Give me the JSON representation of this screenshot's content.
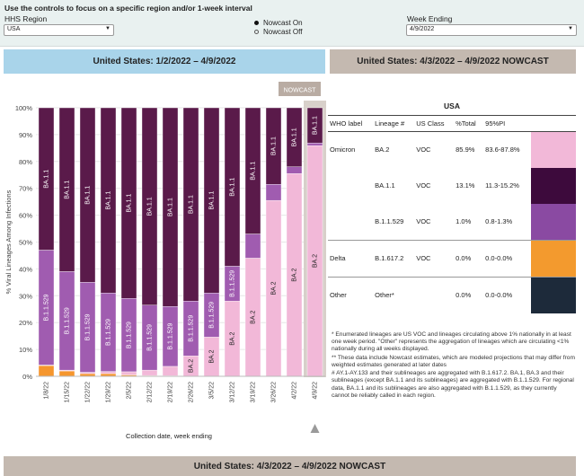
{
  "controls": {
    "intro": "Use the controls to focus on a specific region and/or 1-week interval",
    "region_label": "HHS Region",
    "region_value": "USA",
    "nowcast_on": "Nowcast On",
    "nowcast_off": "Nowcast Off",
    "nowcast_selected": "on",
    "week_label": "Week Ending",
    "week_value": "4/9/2022"
  },
  "banners": {
    "left": "United States: 1/2/2022 – 4/9/2022",
    "right": "United States: 4/3/2022 – 4/9/2022 NOWCAST",
    "bottom": "United States: 4/3/2022 – 4/9/2022 NOWCAST"
  },
  "colors": {
    "BA.2": "#f2b8d8",
    "BA.1.1": "#5a1a4a",
    "B.1.1.529": "#a05cb0",
    "Delta": "#f5962e",
    "Other": "#1d2a3a"
  },
  "chart_data": {
    "type": "bar",
    "stacked": true,
    "ylabel": "% Viral Lineages Among Infections",
    "xlabel": "Collection date, week ending",
    "ylim": [
      0,
      100
    ],
    "yticks": [
      "0%",
      "10%",
      "20%",
      "30%",
      "40%",
      "50%",
      "60%",
      "70%",
      "80%",
      "90%",
      "100%"
    ],
    "nowcast_label": "NOWCAST",
    "nowcast_start_index": 13,
    "categories": [
      "1/8/22",
      "1/15/22",
      "1/22/22",
      "1/29/22",
      "2/5/22",
      "2/12/22",
      "2/19/22",
      "2/26/22",
      "3/5/22",
      "3/12/22",
      "3/19/22",
      "3/26/22",
      "4/2/22",
      "4/9/22"
    ],
    "series": [
      {
        "name": "Delta",
        "values": [
          4,
          2,
          1,
          1,
          0.5,
          0.3,
          0.2,
          0.1,
          0.1,
          0,
          0,
          0,
          0,
          0
        ]
      },
      {
        "name": "BA.2",
        "values": [
          0.2,
          0.3,
          0.5,
          0.8,
          1.2,
          2,
          3.5,
          7.5,
          14.5,
          28,
          44,
          65.5,
          75.5,
          85.9
        ]
      },
      {
        "name": "B.1.1.529",
        "values": [
          42.8,
          36.7,
          33.5,
          29.2,
          27.3,
          24.2,
          22.3,
          20.4,
          16.4,
          13,
          9,
          6,
          2.5,
          1
        ]
      },
      {
        "name": "BA.1.1",
        "values": [
          53,
          61,
          65,
          69,
          71,
          73.5,
          74,
          72,
          69,
          59,
          47,
          28.5,
          22,
          13.1
        ]
      }
    ],
    "bar_labels": [
      [
        "",
        "",
        "B.1.1.529",
        "BA.1.1"
      ],
      [
        "",
        "",
        "B.1.1.529",
        "BA.1.1"
      ],
      [
        "",
        "",
        "B.1.1.529",
        "BA.1.1"
      ],
      [
        "",
        "",
        "B.1.1.529",
        "BA.1.1"
      ],
      [
        "",
        "",
        "B.1.1.529",
        "BA.1.1"
      ],
      [
        "",
        "",
        "B.1.1.529",
        "BA.1.1"
      ],
      [
        "",
        "",
        "B.1.1.529",
        "BA.1.1"
      ],
      [
        "",
        "BA.2",
        "B.1.1.529",
        "BA.1.1"
      ],
      [
        "",
        "BA.2",
        "B.1.1.529",
        "BA.1.1"
      ],
      [
        "",
        "BA.2",
        "B.1.1.529",
        "BA.1.1"
      ],
      [
        "",
        "BA.2",
        "",
        "BA.1.1"
      ],
      [
        "",
        "BA.2",
        "",
        "BA.1.1"
      ],
      [
        "",
        "BA.2",
        "",
        "BA.1.1"
      ],
      [
        "",
        "BA.2",
        "",
        "BA.1.1"
      ]
    ]
  },
  "table": {
    "title": "USA",
    "headers": [
      "WHO label",
      "Lineage #",
      "US Class",
      "%Total",
      "95%PI"
    ],
    "rows": [
      {
        "who": "Omicron",
        "lineage": "BA.2",
        "class": "VOC",
        "total": "85.9%",
        "pi": "83.6-87.8%",
        "color": "#f2b8d8",
        "group_end": false
      },
      {
        "who": "",
        "lineage": "BA.1.1",
        "class": "VOC",
        "total": "13.1%",
        "pi": "11.3-15.2%",
        "color": "#3d0a3c",
        "group_end": false
      },
      {
        "who": "",
        "lineage": "B.1.1.529",
        "class": "VOC",
        "total": "1.0%",
        "pi": "0.8-1.3%",
        "color": "#8a4aa2",
        "group_end": true
      },
      {
        "who": "Delta",
        "lineage": "B.1.617.2",
        "class": "VOC",
        "total": "0.0%",
        "pi": "0.0-0.0%",
        "color": "#f39a2e",
        "group_end": true
      },
      {
        "who": "Other",
        "lineage": "Other*",
        "class": "",
        "total": "0.0%",
        "pi": "0.0-0.0%",
        "color": "#1d2a3a",
        "group_end": false
      }
    ]
  },
  "footnotes": [
    "*     Enumerated lineages are US VOC and lineages circulating above 1% nationally in at least one week period. \"Other\" represents the aggregation of lineages which are circulating <1% nationally during all weeks displayed.",
    "**    These data include Nowcast estimates, which are modeled projections that may differ from weighted estimates generated at later dates",
    "#     AY.1-AY.133 and their sublineages are aggregated with B.1.617.2. BA.1, BA.3 and their sublineages (except BA.1.1 and its sublineages) are aggregated with B.1.1.529. For regional data, BA.1.1 and its sublineages are also aggregated with B.1.1.529, as they currently cannot be reliably called in each region."
  ]
}
